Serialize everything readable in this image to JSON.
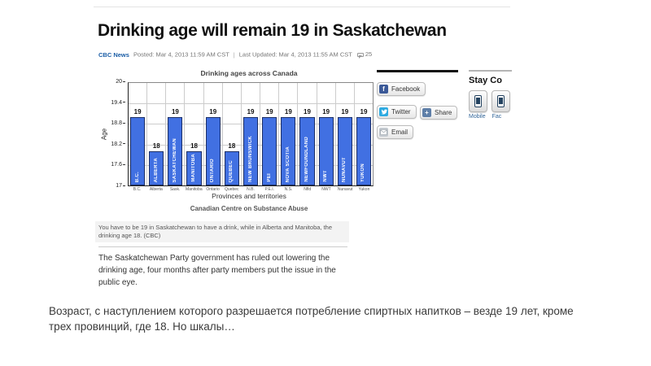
{
  "headline": "Drinking age will remain 19 in Saskatchewan",
  "byline": {
    "source": "CBC News",
    "posted": "Posted: Mar 4, 2013 11:59 AM CST",
    "separator": "|",
    "updated": "Last Updated: Mar 4, 2013 11:55 AM CST",
    "comment_count": "25"
  },
  "chart_data": {
    "type": "bar",
    "title": "Drinking ages across Canada",
    "xlabel": "Provinces and territories",
    "ylabel": "Age",
    "source": "Canadian Centre on Substance Abuse",
    "ylim": [
      17,
      20
    ],
    "yticks": [
      20,
      19.4,
      18.8,
      18.2,
      17.6,
      17
    ],
    "grid": true,
    "legend": "none",
    "bar_color": "#4170e2",
    "categories": [
      "B.C.",
      "Alberta",
      "Sask.",
      "Manitoba",
      "Ontario",
      "Quebec",
      "N.B.",
      "P.E.I.",
      "N.S.",
      "Nfld",
      "NWT",
      "Nunavut",
      "Yukon"
    ],
    "bar_labels": [
      "B.C.",
      "ALBERTA",
      "SASKATCHEWAN",
      "MANITOBA",
      "ONTARIO",
      "QUEBEC",
      "NEW BRUNSWICK",
      "PEI",
      "NOVA SCOTIA",
      "NEWFOUNDLAND",
      "NWT",
      "NUNAVUT",
      "YUKON"
    ],
    "values": [
      19,
      18,
      19,
      18,
      19,
      18,
      19,
      19,
      19,
      19,
      19,
      19,
      19
    ]
  },
  "caption": "You have to be 19 in Saskatchewan to have a drink, while in Alberta and Manitoba, the drinking age 18. (CBC)",
  "paragraph": "The Saskatchewan Party government has ruled out lowering the drinking age, four months after party members put the issue in the public eye.",
  "share_buttons": [
    {
      "label": "Facebook",
      "icon": "facebook-icon",
      "color": "#3b5998"
    },
    {
      "label": "Twitter",
      "icon": "twitter-icon",
      "color": "#2daae1"
    },
    {
      "label": "Share",
      "icon": "share-icon",
      "color": "#5f7fa8"
    },
    {
      "label": "Email",
      "icon": "email-icon",
      "color": "#c3c9cf"
    }
  ],
  "stay_connected": {
    "heading": "Stay Co",
    "apps": [
      {
        "label": "Mobile"
      },
      {
        "label": "Fac"
      }
    ]
  },
  "slide_caption": "Возраст, с наступлением которого разрешается потребление спиртных напитков – везде 19 лет, кроме трех провинций, где 18. Но шкалы…"
}
